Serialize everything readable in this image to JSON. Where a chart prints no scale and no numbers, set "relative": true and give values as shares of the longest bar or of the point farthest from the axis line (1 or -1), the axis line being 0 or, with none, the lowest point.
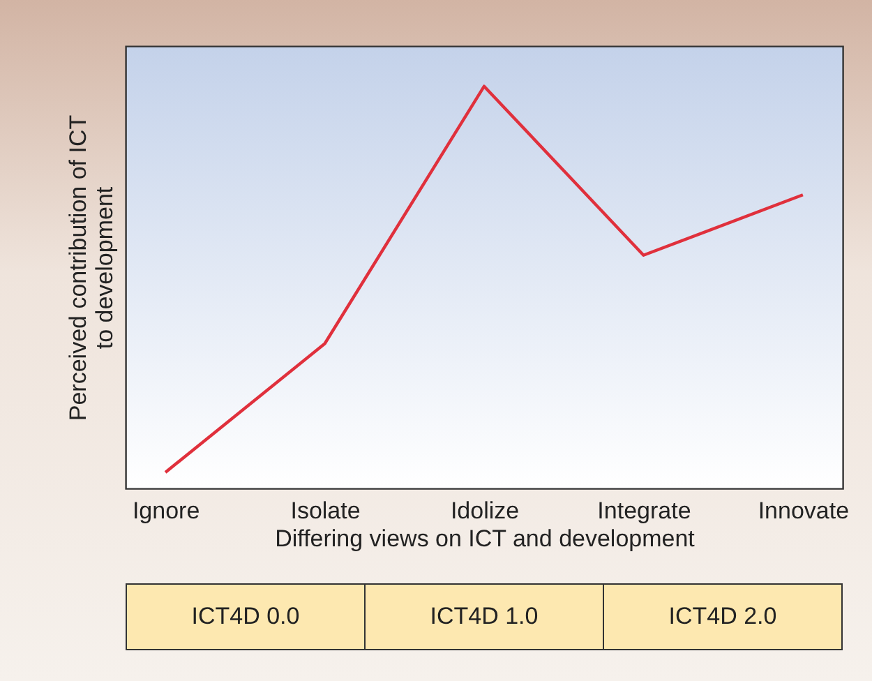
{
  "chart_data": {
    "type": "line",
    "relative": true,
    "categories": [
      "Ignore",
      "Isolate",
      "Idolize",
      "Integrate",
      "Innovate"
    ],
    "series": [
      {
        "color": "#e0303c",
        "values": [
          0.04,
          0.36,
          1,
          0.58,
          0.73
        ]
      }
    ],
    "xlabel": "Differing views on ICT and development",
    "ylabel": "Perceived contribution of ICT to development",
    "annotations": [
      "ICT4D 0.0",
      "ICT4D 1.0",
      "ICT4D 2.0"
    ],
    "grid": false,
    "legend": false
  }
}
